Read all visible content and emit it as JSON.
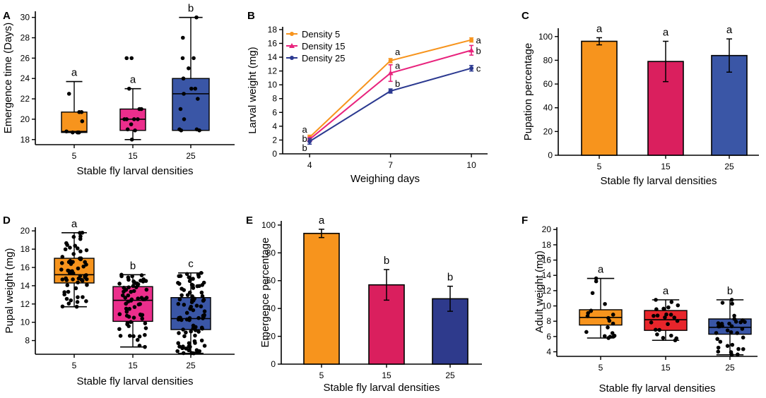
{
  "chart_data": [
    {
      "id": "A",
      "type": "box",
      "panel_label": "A",
      "xlabel": "Stable fly larval densities",
      "ylabel": "Emergence time (Days)",
      "ylim": [
        17.5,
        30.6
      ],
      "yticks": [
        18,
        20,
        22,
        24,
        26,
        28,
        30
      ],
      "categories": [
        "5",
        "15",
        "25"
      ],
      "colors": [
        "#F7941D",
        "#EC2E8C",
        "#3A56A6"
      ],
      "boxes": [
        {
          "min": 18.7,
          "q1": 18.7,
          "median": 18.8,
          "q3": 20.7,
          "max": 23.7,
          "letter": "a",
          "points": [
            18.7,
            18.7,
            18.7,
            18.7,
            18.8,
            19.8,
            20.7,
            20.7,
            22.5
          ]
        },
        {
          "min": 18.0,
          "q1": 18.9,
          "median": 20.0,
          "q3": 21.0,
          "max": 23.0,
          "letter": "a",
          "points": [
            18.0,
            18.9,
            19.0,
            19.5,
            20.0,
            20.0,
            20.0,
            20.0,
            21.0,
            21.0,
            23.0,
            26.0,
            26.0
          ]
        },
        {
          "min": 18.9,
          "q1": 18.9,
          "median": 22.5,
          "q3": 24.0,
          "max": 30.0,
          "letter": "b",
          "points": [
            18.9,
            18.9,
            19.0,
            19.0,
            20.0,
            21.0,
            22.0,
            22.5,
            23.0,
            23.0,
            24.0,
            25.0,
            26.0,
            26.0,
            28.0,
            30.0
          ]
        }
      ]
    },
    {
      "id": "B",
      "type": "line",
      "panel_label": "B",
      "xlabel": "Weighing days",
      "ylabel": "Larval weight (mg)",
      "ylim": [
        0,
        18.4
      ],
      "yticks": [
        0,
        2,
        4,
        6,
        8,
        10,
        12,
        14,
        16,
        18
      ],
      "x": [
        4,
        7,
        10
      ],
      "xlim": [
        3,
        10.6
      ],
      "series": [
        {
          "name": "Density 5",
          "color": "#F7941D",
          "marker": "circle",
          "values": [
            2.4,
            13.5,
            16.5
          ],
          "errors": [
            0.3,
            0.3,
            0.3
          ],
          "letters": [
            "a",
            "a",
            "a"
          ]
        },
        {
          "name": "Density 15",
          "color": "#E8237D",
          "marker": "triangle",
          "values": [
            2.1,
            11.7,
            15.0
          ],
          "errors": [
            0.3,
            1.2,
            0.7
          ],
          "letters": [
            "b",
            "a",
            "b"
          ]
        },
        {
          "name": "Density 25",
          "color": "#2B3990",
          "marker": "circle",
          "values": [
            1.8,
            9.1,
            12.4
          ],
          "errors": [
            0.4,
            0.3,
            0.4
          ],
          "letters": [
            "b",
            "b",
            "c"
          ]
        }
      ]
    },
    {
      "id": "C",
      "type": "bar",
      "panel_label": "C",
      "xlabel": "Stable fly larval densities",
      "ylabel": "Pupation percentage",
      "ylim": [
        0,
        107
      ],
      "yticks": [
        0,
        20,
        40,
        60,
        80,
        100
      ],
      "categories": [
        "5",
        "15",
        "25"
      ],
      "colors": [
        "#F7941D",
        "#DA1F5E",
        "#3A56A6"
      ],
      "values": [
        96,
        79,
        84
      ],
      "errors": [
        3,
        17,
        14
      ],
      "letters": [
        "a",
        "a",
        "a"
      ]
    },
    {
      "id": "D",
      "type": "box",
      "panel_label": "D",
      "xlabel": "Stable fly larval densities",
      "ylabel": "Pupal weight (mg)",
      "ylim": [
        6.5,
        20.4
      ],
      "yticks": [
        8,
        10,
        12,
        14,
        16,
        18,
        20
      ],
      "categories": [
        "5",
        "15",
        "25"
      ],
      "colors": [
        "#F7941D",
        "#EC2E8C",
        "#3A56A6"
      ],
      "boxes": [
        {
          "min": 11.7,
          "q1": 14.3,
          "median": 15.2,
          "q3": 17.0,
          "max": 19.8,
          "letter": "a",
          "n": 60
        },
        {
          "min": 7.3,
          "q1": 10.1,
          "median": 12.4,
          "q3": 13.9,
          "max": 15.2,
          "letter": "b",
          "n": 65
        },
        {
          "min": 6.6,
          "q1": 9.2,
          "median": 10.4,
          "q3": 12.7,
          "max": 15.4,
          "letter": "c",
          "n": 90
        }
      ]
    },
    {
      "id": "E",
      "type": "bar",
      "panel_label": "E",
      "xlabel": "Stable fly larval densities",
      "ylabel": "Emergence percentage",
      "ylim": [
        0,
        103
      ],
      "yticks": [
        0,
        20,
        40,
        60,
        80,
        100
      ],
      "categories": [
        "5",
        "15",
        "25"
      ],
      "colors": [
        "#F7941D",
        "#DA1F5E",
        "#2E3A8C"
      ],
      "values": [
        94,
        57,
        47
      ],
      "errors": [
        3,
        11,
        9
      ],
      "letters": [
        "a",
        "b",
        "b"
      ]
    },
    {
      "id": "F",
      "type": "box",
      "panel_label": "F",
      "xlabel": "Stable fly larval densities",
      "ylabel": "Adult weight (mg)",
      "ylim": [
        3.4,
        20.3
      ],
      "yticks": [
        4,
        6,
        8,
        10,
        12,
        14,
        16,
        18,
        20
      ],
      "categories": [
        "5",
        "15",
        "25"
      ],
      "colors": [
        "#F7941D",
        "#E8252B",
        "#3A56A6"
      ],
      "boxes": [
        {
          "min": 5.8,
          "q1": 7.5,
          "median": 8.5,
          "q3": 9.5,
          "max": 13.6,
          "letter": "a",
          "n": 18
        },
        {
          "min": 5.5,
          "q1": 6.8,
          "median": 8.2,
          "q3": 9.4,
          "max": 10.8,
          "letter": "a",
          "n": 20
        },
        {
          "min": 3.6,
          "q1": 6.3,
          "median": 7.2,
          "q3": 8.3,
          "max": 10.8,
          "letter": "b",
          "n": 32
        }
      ]
    }
  ]
}
